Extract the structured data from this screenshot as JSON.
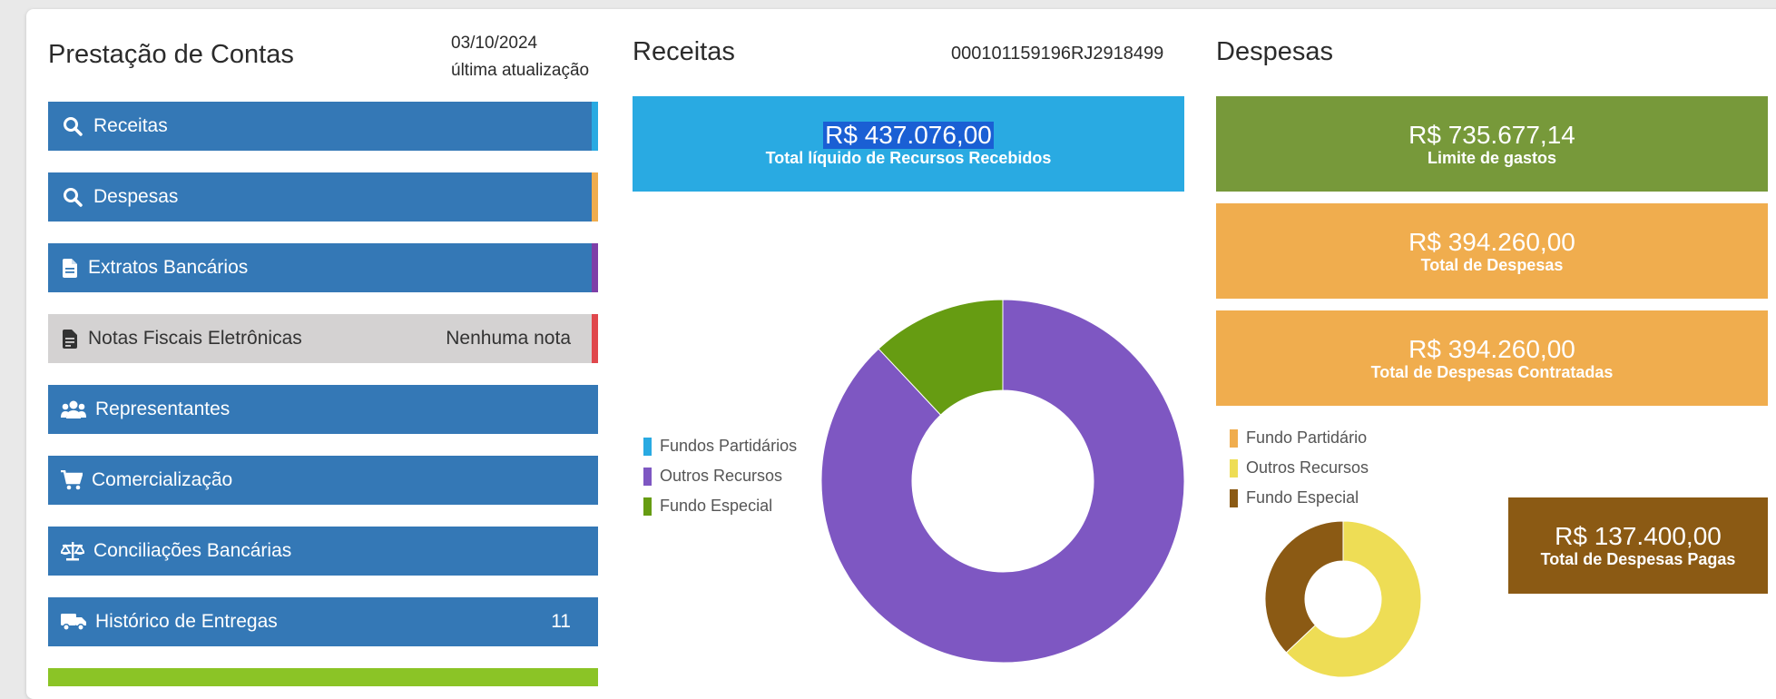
{
  "sidebar": {
    "title": "Prestação de Contas",
    "date": "03/10/2024",
    "date_caption": "última atualização",
    "items": [
      {
        "label": "Receitas",
        "icon": "search-icon",
        "stripe": "#29aae2"
      },
      {
        "label": "Despesas",
        "icon": "search-icon",
        "stripe": "#f0ad4e"
      },
      {
        "label": "Extratos Bancários",
        "icon": "document-icon",
        "stripe": "#7e3fa8"
      },
      {
        "label": "Notas Fiscais Eletrônicas",
        "icon": "receipt-icon",
        "badge": "Nenhuma nota",
        "stripe": "#e0474c"
      },
      {
        "label": "Representantes",
        "icon": "users-icon"
      },
      {
        "label": "Comercialização",
        "icon": "cart-icon"
      },
      {
        "label": "Conciliações Bancárias",
        "icon": "scale-icon"
      },
      {
        "label": "Histórico de Entregas",
        "icon": "truck-icon",
        "count": "11"
      }
    ]
  },
  "receitas": {
    "title": "Receitas",
    "code": "000101159196RJ2918499",
    "total_value": "R$ 437.076,00",
    "total_label": "Total líquido de Recursos Recebidos",
    "legend": [
      {
        "label": "Fundos Partidários",
        "color": "#29aae2"
      },
      {
        "label": "Outros Recursos",
        "color": "#7e57c2"
      },
      {
        "label": "Fundo Especial",
        "color": "#669c12"
      }
    ]
  },
  "despesas": {
    "title": "Despesas",
    "limite_value": "R$ 735.677,14",
    "limite_label": "Limite de gastos",
    "total_value": "R$ 394.260,00",
    "total_label": "Total de Despesas",
    "contratadas_value": "R$ 394.260,00",
    "contratadas_label": "Total de Despesas Contratadas",
    "pagas_value": "R$ 137.400,00",
    "pagas_label": "Total de Despesas Pagas",
    "legend": [
      {
        "label": "Fundo Partidário",
        "color": "#f0ad4e"
      },
      {
        "label": "Outros Recursos",
        "color": "#eedd55"
      },
      {
        "label": "Fundo Especial",
        "color": "#8b5a14"
      }
    ]
  },
  "chart_data": [
    {
      "type": "pie",
      "categories": [
        "Fundos Partidários",
        "Outros Recursos",
        "Fundo Especial"
      ],
      "values": [
        0,
        88,
        12
      ]
    },
    {
      "type": "pie",
      "categories": [
        "Fundo Partidário",
        "Outros Recursos",
        "Fundo Especial"
      ],
      "values": [
        0,
        63,
        37
      ]
    }
  ]
}
